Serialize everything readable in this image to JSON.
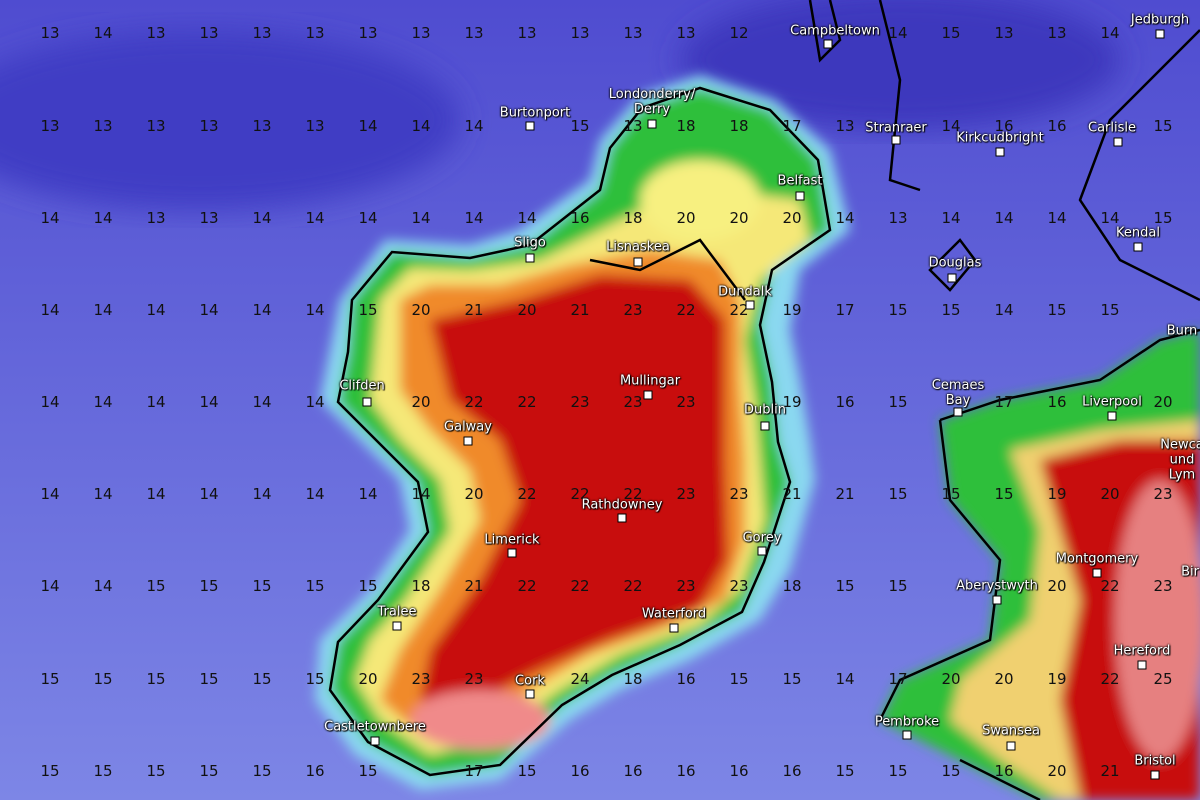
{
  "grid_values": [
    [
      13,
      14,
      13,
      13,
      13,
      13,
      13,
      13,
      13,
      13,
      13,
      13,
      13,
      12,
      null,
      null,
      14,
      15,
      13,
      13,
      14,
      null
    ],
    [
      13,
      13,
      13,
      13,
      13,
      13,
      14,
      14,
      14,
      null,
      15,
      13,
      18,
      18,
      17,
      13,
      null,
      14,
      16,
      16,
      null,
      15
    ],
    [
      14,
      14,
      13,
      13,
      14,
      14,
      14,
      14,
      14,
      14,
      16,
      18,
      20,
      20,
      20,
      14,
      13,
      14,
      14,
      14,
      14,
      15
    ],
    [
      14,
      14,
      14,
      14,
      14,
      14,
      15,
      20,
      21,
      20,
      21,
      23,
      22,
      22,
      19,
      17,
      15,
      15,
      14,
      15,
      15,
      null
    ],
    [
      14,
      14,
      14,
      14,
      14,
      14,
      null,
      20,
      22,
      22,
      23,
      23,
      23,
      null,
      19,
      16,
      15,
      null,
      17,
      16,
      null,
      20
    ],
    [
      14,
      14,
      14,
      14,
      14,
      14,
      14,
      14,
      20,
      22,
      22,
      22,
      23,
      23,
      21,
      21,
      15,
      15,
      15,
      19,
      20,
      23
    ],
    [
      14,
      14,
      15,
      15,
      15,
      15,
      15,
      18,
      21,
      22,
      22,
      22,
      23,
      23,
      18,
      15,
      15,
      null,
      null,
      20,
      22,
      23
    ],
    [
      15,
      15,
      15,
      15,
      15,
      15,
      20,
      23,
      23,
      null,
      24,
      18,
      16,
      15,
      15,
      14,
      17,
      20,
      20,
      19,
      22,
      25
    ],
    [
      15,
      15,
      15,
      15,
      15,
      16,
      15,
      null,
      17,
      15,
      16,
      16,
      16,
      16,
      16,
      15,
      15,
      15,
      16,
      20,
      21,
      null
    ]
  ],
  "places": [
    "Campbeltown",
    "Jedburgh",
    "Burtonport",
    "Londonderry/\nDerry",
    "Stranraer",
    "Kirkcudbright",
    "Carlisle",
    "Belfast",
    "Sligo",
    "Lisnaskea",
    "Kendal",
    "Douglas",
    "Dundalk",
    "Burn",
    "Clifden",
    "Mullingar",
    "Cemaes\nBay",
    "Liverpool",
    "Dublin",
    "Galway",
    "Newca\nund\nLym",
    "Rathdowney",
    "Limerick",
    "Gorey",
    "Aberystwyth",
    "Montgomery",
    "Bir",
    "Tralee",
    "Waterford",
    "Hereford",
    "Cork",
    "Pembroke",
    "Castletownbere",
    "Swansea",
    "Bristol"
  ]
}
